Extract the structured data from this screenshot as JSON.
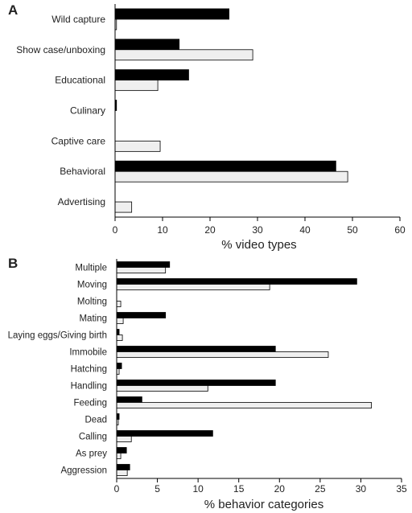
{
  "chart_data": [
    {
      "type": "bar",
      "orientation": "horizontal",
      "panel_label": "A",
      "categories": [
        "Wild capture",
        "Show case/unboxing",
        "Educational",
        "Culinary",
        "Captive care",
        "Behavioral",
        "Advertising"
      ],
      "series": [
        {
          "values": [
            24,
            13.5,
            15.5,
            0.3,
            0,
            46.5,
            0
          ],
          "color": "#000000"
        },
        {
          "values": [
            0.3,
            29,
            9,
            0,
            9.5,
            49,
            3.5
          ],
          "color": "#efefef"
        }
      ],
      "xlabel": "% video types",
      "xlim": [
        0,
        60
      ],
      "xticks": [
        "0",
        "10",
        "20",
        "30",
        "40",
        "50",
        "60"
      ],
      "grid": false,
      "legend": "none"
    },
    {
      "type": "bar",
      "orientation": "horizontal",
      "panel_label": "B",
      "categories": [
        "Multiple",
        "Moving",
        "Molting",
        "Mating",
        "Laying eggs/Giving birth",
        "Immobile",
        "Hatching",
        "Handling",
        "Feeding",
        "Dead",
        "Calling",
        "As prey",
        "Aggression"
      ],
      "series": [
        {
          "values": [
            6.5,
            29.5,
            0,
            6,
            0.3,
            19.5,
            0.6,
            19.5,
            3.1,
            0.3,
            11.8,
            1.2,
            1.6
          ],
          "color": "#000000"
        },
        {
          "values": [
            6,
            18.8,
            0.5,
            0.8,
            0.7,
            26,
            0.3,
            11.2,
            31.3,
            0.2,
            1.8,
            0.5,
            1.3
          ],
          "color": "#efefef"
        }
      ],
      "xlabel": "% behavior categories",
      "xlim": [
        0,
        35
      ],
      "xticks": [
        "0",
        "5",
        "10",
        "15",
        "20",
        "25",
        "30",
        "35"
      ],
      "grid": false,
      "legend": "none"
    }
  ]
}
